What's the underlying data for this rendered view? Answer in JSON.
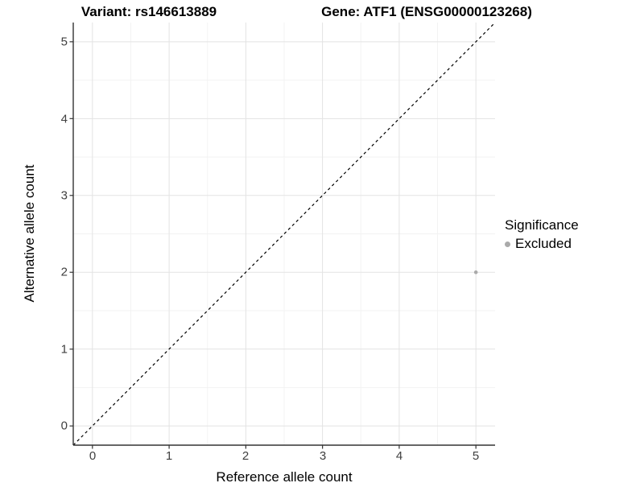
{
  "header": {
    "variant_title": "Variant: rs146613889",
    "gene_title": "Gene: ATF1 (ENSG00000123268)"
  },
  "x_axis": {
    "label": "Reference allele count",
    "tick_labels": [
      "0",
      "1",
      "2",
      "3",
      "4",
      "5"
    ]
  },
  "y_axis": {
    "label": "Alternative allele count",
    "tick_labels": [
      "0",
      "1",
      "2",
      "3",
      "4",
      "5"
    ]
  },
  "legend": {
    "title": "Significance",
    "entries": [
      {
        "label": "Excluded",
        "color": "#aaaaaa"
      }
    ]
  },
  "chart_data": {
    "type": "scatter",
    "title": "Variant: rs146613889 | Gene: ATF1 (ENSG00000123268)",
    "xlabel": "Reference allele count",
    "ylabel": "Alternative allele count",
    "xlim": [
      -0.25,
      5.25
    ],
    "ylim": [
      -0.25,
      5.25
    ],
    "x_ticks": [
      0,
      1,
      2,
      3,
      4,
      5
    ],
    "y_ticks": [
      0,
      1,
      2,
      3,
      4,
      5
    ],
    "grid": "major and minor gridlines on, white panel background",
    "legend_position": "right",
    "series": [
      {
        "name": "Excluded",
        "color": "#aaaaaa",
        "marker": "circle",
        "points": [
          [
            5,
            2
          ]
        ]
      }
    ],
    "reference_line": {
      "style": "dashed",
      "slope": 1,
      "intercept": 0,
      "color": "#000000"
    }
  },
  "colors": {
    "background": "#ffffff",
    "grid_major": "#e3e3e3",
    "grid_minor": "#f2f2f2",
    "axis_line": "#333333",
    "tick_text": "#404040",
    "excluded_point": "#aaaaaa"
  }
}
